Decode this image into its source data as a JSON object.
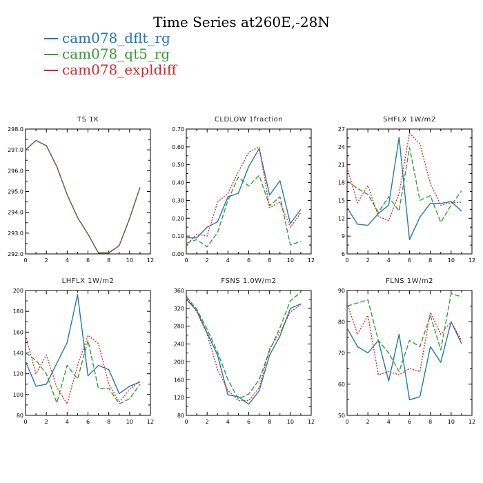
{
  "title": "Time Series at260E,-28N",
  "colors": {
    "dflt": "#1f77b4",
    "qt5": "#2ca02c",
    "expl": "#d62728"
  },
  "legend": [
    {
      "name": "cam078_dflt_rg",
      "color": "#1f77b4"
    },
    {
      "name": "cam078_qt5_rg",
      "color": "#2ca02c"
    },
    {
      "name": "cam078_expldiff",
      "color": "#d62728"
    }
  ],
  "chart_data": [
    {
      "type": "line",
      "title": "TS   1K",
      "x": [
        0,
        1,
        2,
        3,
        4,
        5,
        6,
        7,
        8,
        9,
        10,
        11
      ],
      "xlim": [
        0,
        12
      ],
      "xticks": [
        0,
        2,
        4,
        6,
        8,
        10,
        12
      ],
      "ylim": [
        292,
        298
      ],
      "yticks": [
        "292.0",
        "293.0",
        "294.0",
        "295.0",
        "296.0",
        "297.0",
        "298.0"
      ],
      "series": [
        {
          "name": "cam078_dflt_rg",
          "color": "#1f77b4",
          "dash": "",
          "values": [
            297.0,
            297.45,
            297.2,
            296.2,
            294.85,
            293.75,
            292.95,
            292.05,
            292.05,
            292.4,
            293.7,
            295.2
          ]
        },
        {
          "name": "cam078_qt5_rg",
          "color": "#2ca02c",
          "dash": "7,3",
          "values": [
            297.0,
            297.45,
            297.2,
            296.2,
            294.85,
            293.75,
            292.95,
            292.05,
            292.05,
            292.4,
            293.7,
            295.2
          ]
        },
        {
          "name": "cam078_expldiff",
          "color": "#d62728",
          "dash": "2,2",
          "values": [
            297.0,
            297.45,
            297.2,
            296.2,
            294.85,
            293.75,
            292.95,
            292.05,
            292.05,
            292.4,
            293.7,
            295.2
          ]
        }
      ]
    },
    {
      "type": "line",
      "title": "CLDLOW   1fraction",
      "x": [
        0,
        1,
        2,
        3,
        4,
        5,
        6,
        7,
        8,
        9,
        10,
        11
      ],
      "xlim": [
        0,
        12
      ],
      "xticks": [
        0,
        2,
        4,
        6,
        8,
        10,
        12
      ],
      "ylim": [
        0,
        0.7
      ],
      "yticks": [
        "0.00",
        "0.10",
        "0.20",
        "0.30",
        "0.40",
        "0.50",
        "0.60",
        "0.70"
      ],
      "series": [
        {
          "name": "cam078_dflt_rg",
          "color": "#1f77b4",
          "dash": "",
          "values": [
            0.09,
            0.09,
            0.15,
            0.18,
            0.32,
            0.34,
            0.49,
            0.59,
            0.33,
            0.41,
            0.17,
            0.25
          ]
        },
        {
          "name": "cam078_qt5_rg",
          "color": "#2ca02c",
          "dash": "7,3",
          "values": [
            0.06,
            0.08,
            0.04,
            0.12,
            0.3,
            0.43,
            0.38,
            0.44,
            0.27,
            0.32,
            0.05,
            0.07
          ]
        },
        {
          "name": "cam078_expldiff",
          "color": "#d62728",
          "dash": "2,2",
          "values": [
            0.05,
            0.11,
            0.1,
            0.29,
            0.34,
            0.46,
            0.57,
            0.6,
            0.26,
            0.29,
            0.15,
            0.23
          ]
        }
      ]
    },
    {
      "type": "line",
      "title": "SHFLX   1W/m2",
      "x": [
        0,
        1,
        2,
        3,
        4,
        5,
        6,
        7,
        8,
        9,
        10,
        11
      ],
      "xlim": [
        0,
        12
      ],
      "xticks": [
        0,
        2,
        4,
        6,
        8,
        10,
        12
      ],
      "ylim": [
        6,
        27
      ],
      "yticks": [
        "6",
        "9",
        "12",
        "15",
        "18",
        "21",
        "24",
        "27"
      ],
      "series": [
        {
          "name": "cam078_dflt_rg",
          "color": "#1f77b4",
          "dash": "",
          "values": [
            13.8,
            11.0,
            10.8,
            12.8,
            14.2,
            25.6,
            8.4,
            12.2,
            14.5,
            14.5,
            14.8,
            13.2
          ]
        },
        {
          "name": "cam078_qt5_rg",
          "color": "#2ca02c",
          "dash": "7,3",
          "values": [
            18.3,
            17.0,
            16.0,
            13.0,
            15.6,
            13.2,
            23.9,
            15.0,
            15.8,
            11.3,
            14.2,
            16.6
          ]
        },
        {
          "name": "cam078_expldiff",
          "color": "#d62728",
          "dash": "2,2",
          "values": [
            20.5,
            14.6,
            17.5,
            12.3,
            11.6,
            16.2,
            26.3,
            24.5,
            17.8,
            14.2,
            14.6,
            14.7
          ]
        }
      ]
    },
    {
      "type": "line",
      "title": "LHFLX   1W/m2",
      "x": [
        0,
        1,
        2,
        3,
        4,
        5,
        6,
        7,
        8,
        9,
        10,
        11
      ],
      "xlim": [
        0,
        12
      ],
      "xticks": [
        0,
        2,
        4,
        6,
        8,
        10,
        12
      ],
      "ylim": [
        80,
        200
      ],
      "yticks": [
        "80",
        "100",
        "120",
        "140",
        "160",
        "180",
        "200"
      ],
      "series": [
        {
          "name": "cam078_dflt_rg",
          "color": "#1f77b4",
          "dash": "",
          "values": [
            132,
            108,
            110,
            130,
            150,
            196,
            118,
            128,
            124,
            101,
            108,
            112
          ]
        },
        {
          "name": "cam078_qt5_rg",
          "color": "#2ca02c",
          "dash": "7,3",
          "values": [
            140,
            133,
            120,
            92,
            128,
            115,
            152,
            106,
            106,
            91,
            96,
            110
          ]
        },
        {
          "name": "cam078_expldiff",
          "color": "#d62728",
          "dash": "2,2",
          "values": [
            157,
            120,
            138,
            107,
            91,
            128,
            157,
            149,
            110,
            93,
            105,
            113
          ]
        }
      ]
    },
    {
      "type": "line",
      "title": "FSNS   1.0W/m2",
      "x": [
        0,
        1,
        2,
        3,
        4,
        5,
        6,
        7,
        8,
        9,
        10,
        11
      ],
      "xlim": [
        0,
        12
      ],
      "xticks": [
        0,
        2,
        4,
        6,
        8,
        10,
        12
      ],
      "ylim": [
        80,
        360
      ],
      "yticks": [
        "80",
        "120",
        "160",
        "200",
        "240",
        "280",
        "320",
        "360"
      ],
      "series": [
        {
          "name": "cam078_dflt_rg",
          "color": "#1f77b4",
          "dash": "",
          "values": [
            340,
            315,
            265,
            215,
            126,
            122,
            105,
            135,
            215,
            258,
            320,
            330
          ]
        },
        {
          "name": "cam078_qt5_rg",
          "color": "#2ca02c",
          "dash": "7,3",
          "values": [
            346,
            318,
            273,
            222,
            160,
            117,
            128,
            160,
            225,
            277,
            337,
            356
          ]
        },
        {
          "name": "cam078_expldiff",
          "color": "#d62728",
          "dash": "2,2",
          "values": [
            348,
            312,
            262,
            183,
            136,
            113,
            113,
            142,
            230,
            266,
            312,
            328
          ]
        }
      ]
    },
    {
      "type": "line",
      "title": "FLNS   1W/m2",
      "x": [
        0,
        1,
        2,
        3,
        4,
        5,
        6,
        7,
        8,
        9,
        10,
        11
      ],
      "xlim": [
        0,
        12
      ],
      "xticks": [
        0,
        2,
        4,
        6,
        8,
        10,
        12
      ],
      "ylim": [
        50,
        90
      ],
      "yticks": [
        "50",
        "60",
        "70",
        "80",
        "90"
      ],
      "series": [
        {
          "name": "cam078_dflt_rg",
          "color": "#1f77b4",
          "dash": "",
          "values": [
            78,
            72,
            70,
            74,
            61,
            76,
            55,
            56,
            72,
            67,
            80,
            73
          ]
        },
        {
          "name": "cam078_qt5_rg",
          "color": "#2ca02c",
          "dash": "7,3",
          "values": [
            85,
            86,
            87,
            74,
            70,
            64,
            74,
            72,
            82,
            71,
            89,
            88
          ]
        },
        {
          "name": "cam078_expldiff",
          "color": "#d62728",
          "dash": "2,2",
          "values": [
            86,
            76,
            82,
            63,
            64,
            63,
            65,
            64,
            83,
            76,
            80,
            74
          ]
        }
      ]
    }
  ]
}
